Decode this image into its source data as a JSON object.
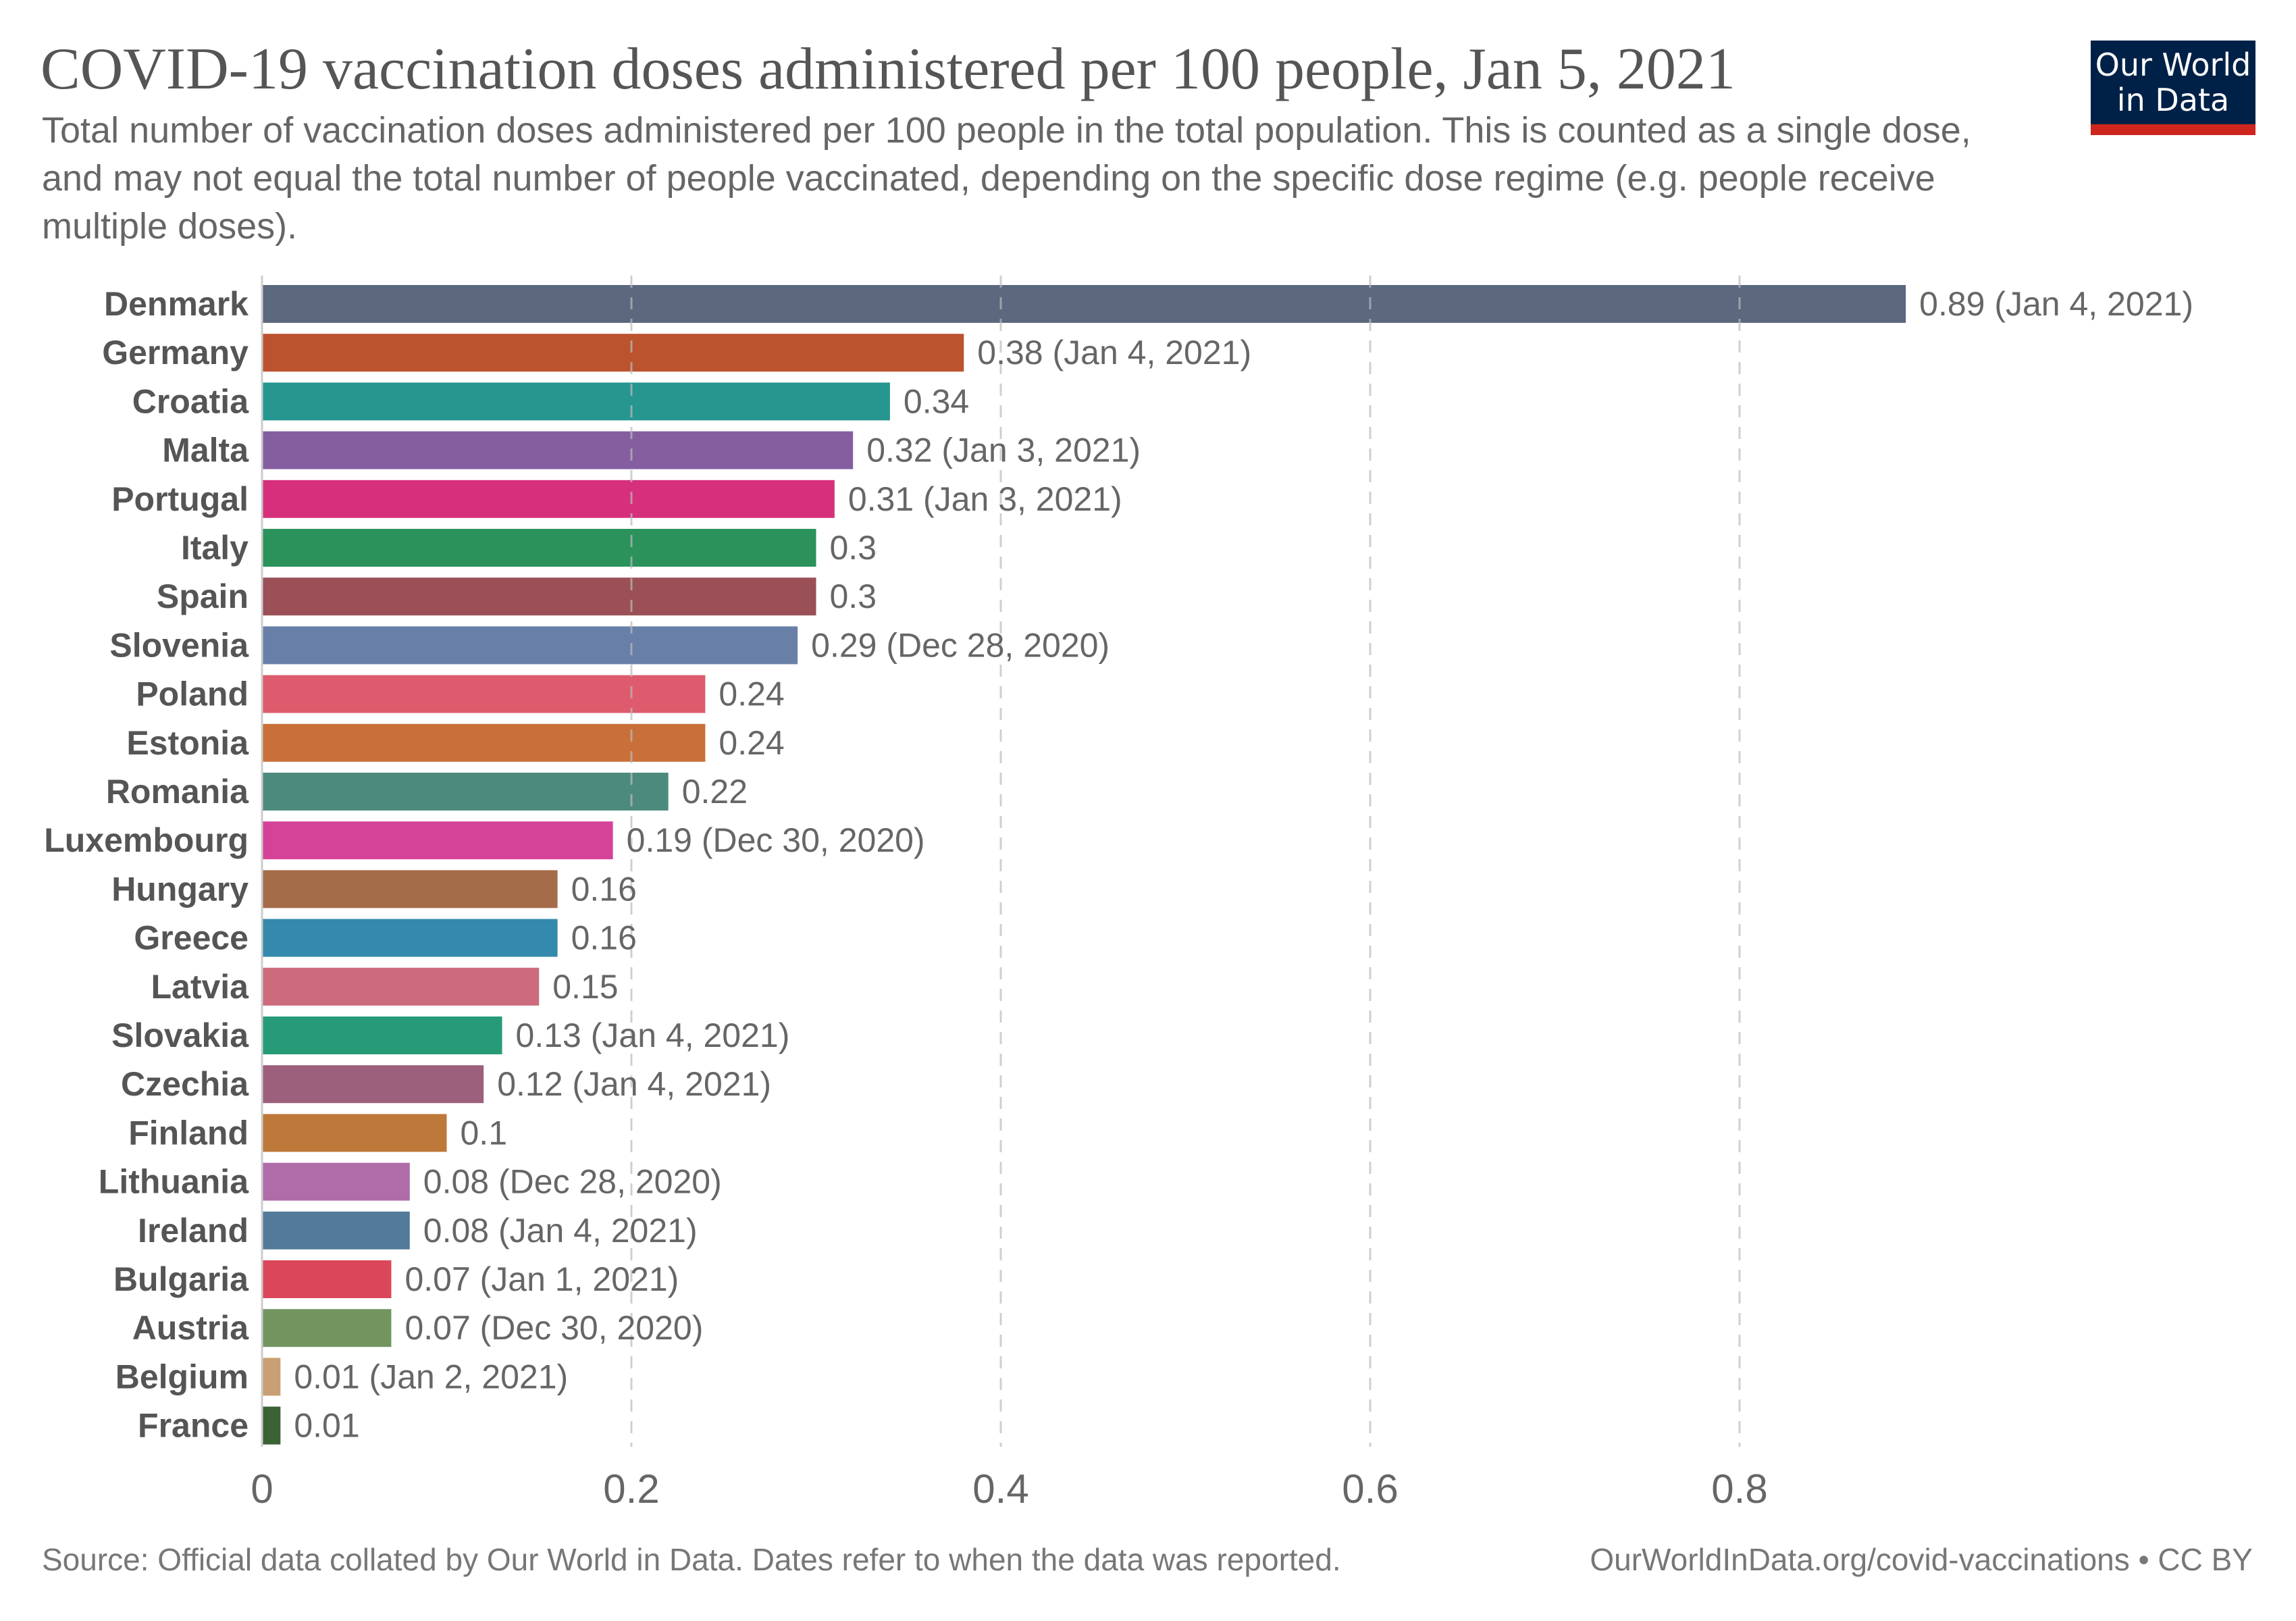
{
  "header": {
    "title": "COVID-19 vaccination doses administered per 100 people, Jan 5, 2021",
    "subtitle": "Total number of vaccination doses administered per 100 people in the total population. This is counted as a single dose, and may not equal the total number of people vaccinated, depending on the specific dose regime (e.g. people receive multiple doses).",
    "logo_line1": "Our World",
    "logo_line2": "in Data"
  },
  "footer": {
    "source": "Source: Official data collated by Our World in Data. Dates refer to when the data was reported.",
    "credit": "OurWorldInData.org/covid-vaccinations • CC BY"
  },
  "colors": {
    "logo_bg": "#002147",
    "logo_accent": "#ce261e",
    "text": "#555555"
  },
  "chart_data": {
    "type": "bar",
    "orientation": "horizontal",
    "title": "COVID-19 vaccination doses administered per 100 people, Jan 5, 2021",
    "xlabel": "",
    "ylabel": "",
    "xlim": [
      0,
      0.9
    ],
    "xticks": [
      0,
      0.2,
      0.4,
      0.6,
      0.8
    ],
    "xtick_labels": [
      "0",
      "0.2",
      "0.4",
      "0.6",
      "0.8"
    ],
    "grid": "vertical dashed",
    "categories": [
      "Denmark",
      "Germany",
      "Croatia",
      "Malta",
      "Portugal",
      "Italy",
      "Spain",
      "Slovenia",
      "Poland",
      "Estonia",
      "Romania",
      "Luxembourg",
      "Hungary",
      "Greece",
      "Latvia",
      "Slovakia",
      "Czechia",
      "Finland",
      "Lithuania",
      "Ireland",
      "Bulgaria",
      "Austria",
      "Belgium",
      "France"
    ],
    "values": [
      0.89,
      0.38,
      0.34,
      0.32,
      0.31,
      0.3,
      0.3,
      0.29,
      0.24,
      0.24,
      0.22,
      0.19,
      0.16,
      0.16,
      0.15,
      0.13,
      0.12,
      0.1,
      0.08,
      0.08,
      0.07,
      0.07,
      0.01,
      0.01
    ],
    "labels": [
      "0.89 (Jan 4, 2021)",
      "0.38 (Jan 4, 2021)",
      "0.34",
      "0.32 (Jan 3, 2021)",
      "0.31 (Jan 3, 2021)",
      "0.3",
      "0.3",
      "0.29 (Dec 28, 2020)",
      "0.24",
      "0.24",
      "0.22",
      "0.19 (Dec 30, 2020)",
      "0.16",
      "0.16",
      "0.15",
      "0.13 (Jan 4, 2021)",
      "0.12 (Jan 4, 2021)",
      "0.1",
      "0.08 (Dec 28, 2020)",
      "0.08 (Jan 4, 2021)",
      "0.07 (Jan 1, 2021)",
      "0.07 (Dec 30, 2020)",
      "0.01 (Jan 2, 2021)",
      "0.01"
    ],
    "colors": [
      "#5b687e",
      "#bc532f",
      "#26968f",
      "#855ea0",
      "#d6307c",
      "#2a925a",
      "#9a5056",
      "#6880a8",
      "#dd5b6c",
      "#c96f39",
      "#4d8a7e",
      "#d54398",
      "#a56c4a",
      "#3489ad",
      "#cc6b7c",
      "#279b77",
      "#9c5f7c",
      "#be783a",
      "#b06ca8",
      "#527a9a",
      "#dc465b",
      "#72955f",
      "#c9a073",
      "#3a6235"
    ]
  }
}
